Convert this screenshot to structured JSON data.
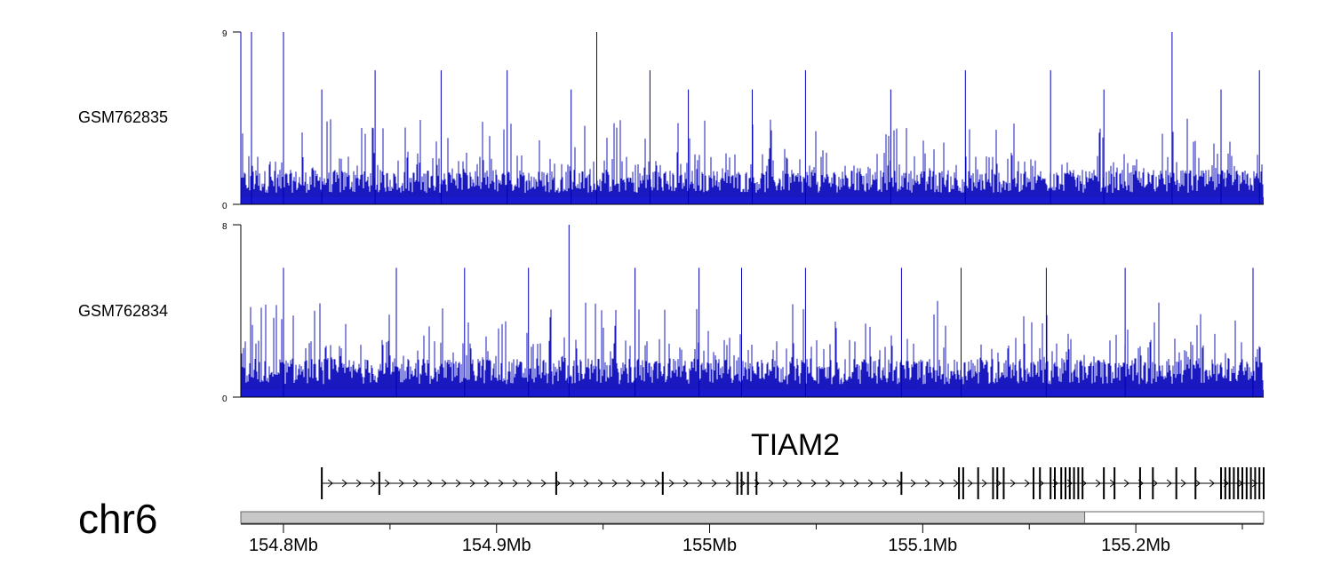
{
  "chart_data": {
    "type": "genome-browser-tracks",
    "region": {
      "chromosome": "chr6",
      "start_mb": 154.78,
      "end_mb": 155.26
    },
    "coverage_tracks": [
      {
        "name": "GSM762835",
        "ylim": [
          0,
          9
        ],
        "y_ticks": [
          "9",
          "0"
        ],
        "color": "#0000b8",
        "spikes": [
          {
            "x": 154.78,
            "y": 9
          },
          {
            "x": 154.785,
            "y": 9
          },
          {
            "x": 154.8,
            "y": 9
          },
          {
            "x": 154.818,
            "y": 6
          },
          {
            "x": 154.843,
            "y": 7
          },
          {
            "x": 154.874,
            "y": 7
          },
          {
            "x": 154.905,
            "y": 7
          },
          {
            "x": 154.935,
            "y": 6
          },
          {
            "x": 154.947,
            "y": 9
          },
          {
            "x": 154.972,
            "y": 7
          },
          {
            "x": 154.99,
            "y": 6
          },
          {
            "x": 155.02,
            "y": 6
          },
          {
            "x": 155.045,
            "y": 7
          },
          {
            "x": 155.085,
            "y": 6
          },
          {
            "x": 155.12,
            "y": 7
          },
          {
            "x": 155.16,
            "y": 7
          },
          {
            "x": 155.185,
            "y": 6
          },
          {
            "x": 155.217,
            "y": 9
          },
          {
            "x": 155.24,
            "y": 6
          },
          {
            "x": 155.258,
            "y": 7
          }
        ]
      },
      {
        "name": "GSM762834",
        "ylim": [
          0,
          8
        ],
        "y_ticks": [
          "8",
          "0"
        ],
        "color": "#0000b8",
        "spikes": [
          {
            "x": 154.8,
            "y": 6
          },
          {
            "x": 154.853,
            "y": 6
          },
          {
            "x": 154.885,
            "y": 6
          },
          {
            "x": 154.915,
            "y": 6
          },
          {
            "x": 154.934,
            "y": 8
          },
          {
            "x": 154.965,
            "y": 6
          },
          {
            "x": 154.995,
            "y": 6
          },
          {
            "x": 155.015,
            "y": 6
          },
          {
            "x": 155.045,
            "y": 6
          },
          {
            "x": 155.09,
            "y": 6
          },
          {
            "x": 155.118,
            "y": 6
          },
          {
            "x": 155.158,
            "y": 6
          },
          {
            "x": 155.195,
            "y": 6
          },
          {
            "x": 155.255,
            "y": 6
          }
        ]
      }
    ],
    "gene": {
      "name": "TIAM2",
      "start_mb": 154.818,
      "end_mb": 155.26,
      "strand": "+",
      "exons_mb": [
        154.818,
        154.845,
        154.928,
        154.978,
        155.013,
        155.015,
        155.018,
        155.022,
        155.09,
        155.117,
        155.119,
        155.126,
        155.133,
        155.135,
        155.138,
        155.152,
        155.155,
        155.16,
        155.162,
        155.165,
        155.167,
        155.169,
        155.171,
        155.173,
        155.175,
        155.185,
        155.19,
        155.202,
        155.208,
        155.219,
        155.228,
        155.24,
        155.242,
        155.244,
        155.246,
        155.248,
        155.25,
        155.252,
        155.254,
        155.256,
        155.258,
        155.26
      ]
    },
    "ideogram": {
      "label": "chr6",
      "filled_from_mb": 154.78,
      "filled_to_mb": 155.176,
      "fill_color": "#c8c8c8"
    },
    "x_axis": {
      "ticks_mb": [
        154.8,
        154.9,
        155.0,
        155.1,
        155.2
      ],
      "tick_labels": [
        "154.8Mb",
        "154.9Mb",
        "155Mb",
        "155.1Mb",
        "155.2Mb"
      ],
      "minor_ticks_mb": [
        154.85,
        154.95,
        155.05,
        155.15,
        155.25
      ]
    }
  }
}
